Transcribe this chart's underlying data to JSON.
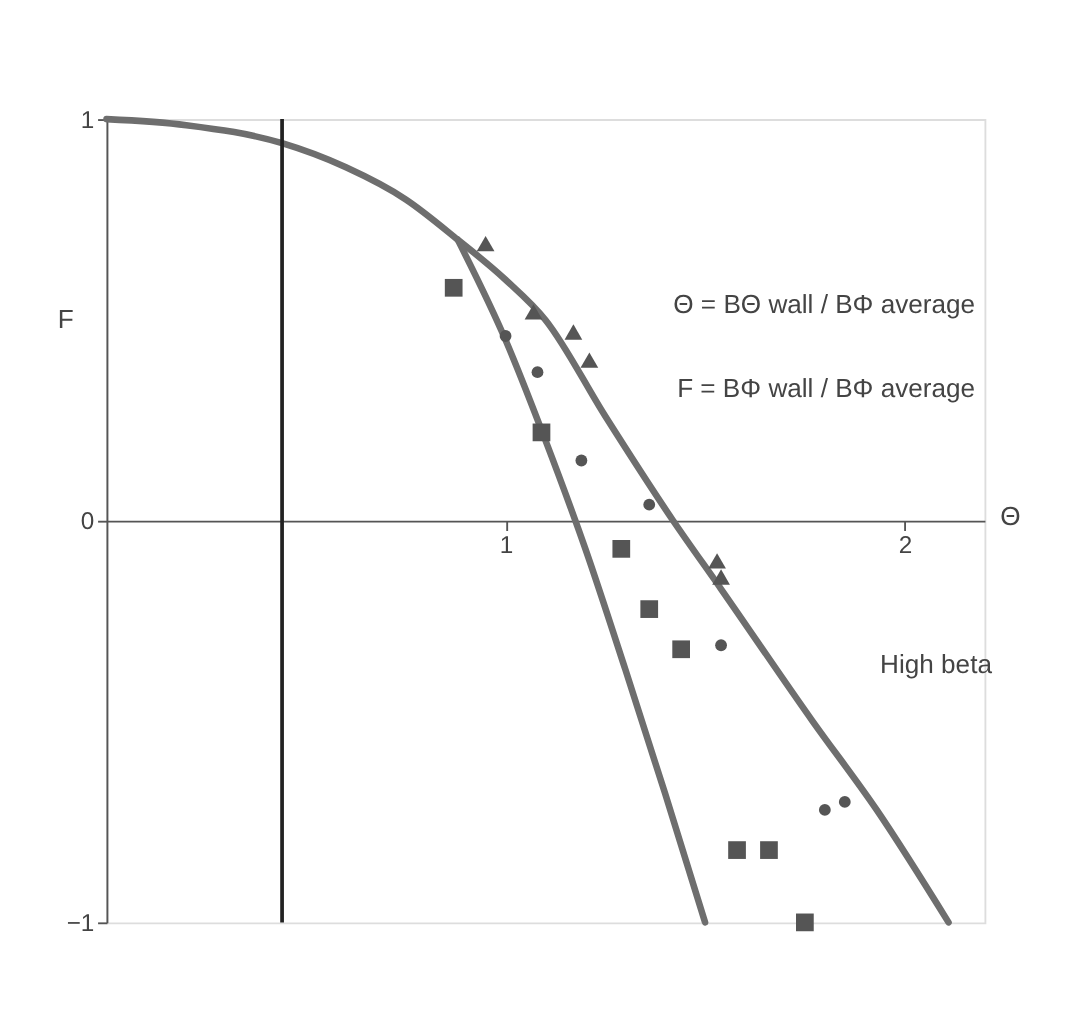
{
  "chart_data": {
    "type": "line",
    "xlabel": "Θ",
    "ylabel": "F",
    "xlim": [
      0,
      2.2
    ],
    "ylim": [
      -1,
      1
    ],
    "xticks": [
      1,
      2
    ],
    "yticks": [
      -1,
      0,
      1
    ],
    "grid": false,
    "series": [
      {
        "color": "#6e6e6e",
        "x": [
          0,
          0.2,
          0.44,
          0.6,
          0.75,
          0.88,
          1.0,
          1.1,
          1.25,
          1.42,
          1.54,
          1.77,
          1.93,
          2.11
        ],
        "values": [
          1.0,
          0.985,
          0.94,
          0.88,
          0.8,
          0.7,
          0.6,
          0.5,
          0.26,
          0.0,
          -0.17,
          -0.5,
          -0.72,
          -1.0
        ]
      },
      {
        "color": "#6e6e6e",
        "x": [
          0.88,
          1.0,
          1.1,
          1.2,
          1.3,
          1.4,
          1.5
        ],
        "values": [
          0.7,
          0.45,
          0.2,
          -0.07,
          -0.37,
          -0.68,
          -1.0
        ]
      },
      {
        "type": "scatter",
        "marker": "triangle",
        "color": "#555555",
        "x": [
          0.95,
          1.07,
          1.17,
          1.21,
          1.53,
          1.54
        ],
        "values": [
          0.69,
          0.52,
          0.47,
          0.4,
          -0.1,
          -0.14
        ]
      },
      {
        "type": "scatter",
        "marker": "square",
        "color": "#555555",
        "x": [
          0.87,
          1.09,
          1.29,
          1.36,
          1.44,
          1.58,
          1.66,
          1.75
        ],
        "values": [
          0.58,
          0.22,
          -0.07,
          -0.22,
          -0.32,
          -0.82,
          -0.82,
          -1.0
        ]
      },
      {
        "type": "scatter",
        "marker": "circle",
        "color": "#555555",
        "x": [
          1.0,
          1.08,
          1.19,
          1.36,
          1.54,
          1.8,
          1.85
        ],
        "values": [
          0.46,
          0.37,
          0.15,
          0.04,
          -0.31,
          -0.72,
          -0.7
        ]
      }
    ],
    "ref_lines": [
      {
        "axis": "x",
        "value": 0.44,
        "color": "#222222"
      }
    ],
    "annotations": [
      "Θ = BΘ wall / BΦ average",
      "F = BΦ wall / BΦ average",
      "High beta"
    ]
  }
}
